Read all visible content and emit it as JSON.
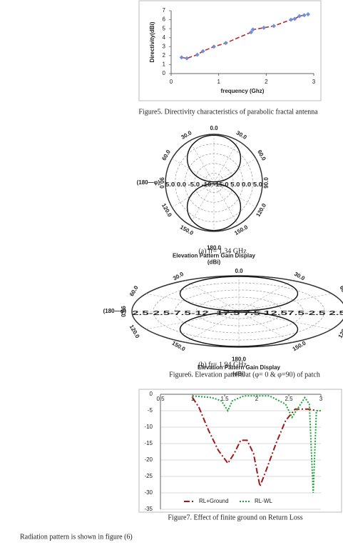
{
  "chart_data": [
    {
      "type": "line",
      "xlabel": "frequency (Ghz)",
      "ylabel": "Directivity(dBi)",
      "xlim": [
        0,
        3
      ],
      "xticks": [
        0,
        1,
        2,
        3
      ],
      "ylim": [
        0,
        7
      ],
      "yticks": [
        0,
        1,
        2,
        3,
        4,
        5,
        6,
        7
      ],
      "markers": true,
      "marker_color": "#6f8fd6",
      "series": [
        {
          "name": "Directivity",
          "color": "#c0272d",
          "x": [
            0.22,
            0.33,
            0.55,
            0.67,
            0.9,
            1.15,
            1.68,
            1.72,
            1.95,
            2.16,
            2.52,
            2.6,
            2.7,
            2.8,
            2.88
          ],
          "values": [
            1.8,
            1.7,
            2.1,
            2.5,
            3.0,
            3.4,
            4.6,
            4.9,
            5.1,
            5.3,
            6.0,
            6.1,
            6.4,
            6.5,
            6.6
          ]
        }
      ],
      "caption": "Figure5. Directivity characteristics of parabolic fractal antenna"
    },
    {
      "type": "line",
      "xlim": [
        0.5,
        3
      ],
      "xticks": [
        0.5,
        1,
        1.5,
        2,
        2.5,
        3
      ],
      "ylim": [
        -35,
        0
      ],
      "yticks": [
        0,
        -5,
        -10,
        -15,
        -20,
        -25,
        -30,
        -35
      ],
      "grid": true,
      "legend": "bottom",
      "series": [
        {
          "name": "RL+Ground",
          "color": "#a01818",
          "dash": "8 3 2 3",
          "x": [
            1.0,
            1.1,
            1.25,
            1.4,
            1.55,
            1.65,
            1.75,
            1.85,
            1.95,
            2.05,
            2.15,
            2.3,
            2.45,
            2.6,
            2.8,
            2.95
          ],
          "values": [
            -1,
            -4,
            -11,
            -17,
            -21,
            -18,
            -14,
            -14,
            -18,
            -28,
            -23,
            -15,
            -8,
            -4.5,
            -4.5,
            -5
          ]
        },
        {
          "name": "RL-WL",
          "color": "#1fa33a",
          "dash": "2 2",
          "x": [
            1.0,
            1.3,
            1.45,
            1.55,
            1.62,
            1.8,
            2.2,
            2.45,
            2.55,
            2.65,
            2.75,
            2.82,
            2.88,
            2.93,
            3.0
          ],
          "values": [
            -0.5,
            -1,
            -2,
            -5,
            -2,
            -0.5,
            -0.5,
            -3,
            -7,
            -4,
            -1,
            -3,
            -30,
            -5,
            -5
          ]
        }
      ],
      "caption": "Figure7. Effect of finite ground on Return Loss"
    }
  ],
  "polar_plots": [
    {
      "angles": [
        "0.0",
        "30.0",
        "60.0",
        "90.0",
        "120.0",
        "150.0",
        "180.0"
      ],
      "side": "(180—φ)",
      "scale": "5.0 0.0 -5.0 -10.-15.0 5.0 0.0 5.0",
      "title": "Elevation Pattern Gain Display",
      "unit": "(dBi)",
      "caption": "(a) fr= 1.34 GHz"
    },
    {
      "angles": [
        "0.0",
        "30.0",
        "60.0",
        "90.0",
        "120.0",
        "150.0",
        "180.0"
      ],
      "side": "(180—φ)",
      "scale": "2.5-2.5-7.5-12.-17.5 7.5 12.57.5-2.5 2.5",
      "title": "Elevation Pattern Gain Display",
      "unit": "(dBi)",
      "caption": "(b) fr= 1.94 GHz"
    }
  ],
  "figure6_caption": "Figure6. Elevation pattern at (φ= 0 & φ=90) of patch",
  "body": "Radiation pattern is shown in figure (6)"
}
